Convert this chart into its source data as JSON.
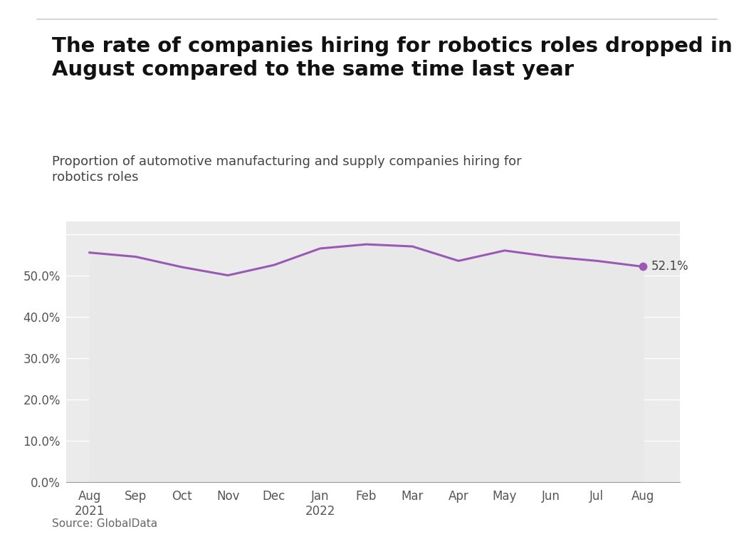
{
  "title_line1": "The rate of companies hiring for robotics roles dropped in",
  "title_line2": "August compared to the same time last year",
  "subtitle": "Proportion of automotive manufacturing and supply companies hiring for\nrobotics roles",
  "source": "Source: GlobalData",
  "line_color": "#9B59B6",
  "fill_color": "#E8E8E8",
  "background_color": "#EBEBEB",
  "last_label": "52.1%",
  "x_labels": [
    "Aug\n2021",
    "Sep",
    "Oct",
    "Nov",
    "Dec",
    "Jan\n2022",
    "Feb",
    "Mar",
    "Apr",
    "May",
    "Jun",
    "Jul",
    "Aug"
  ],
  "y_values": [
    55.5,
    54.5,
    52.0,
    50.0,
    52.5,
    56.5,
    57.5,
    57.0,
    53.5,
    56.0,
    54.5,
    53.5,
    52.1
  ],
  "y_ticks": [
    0,
    10,
    20,
    30,
    40,
    50,
    60
  ],
  "y_tick_labels": [
    "0.0%",
    "10.0%",
    "20.0%",
    "30.0%",
    "40.0%",
    "50.0%",
    ""
  ],
  "ylim": [
    0,
    63
  ],
  "title_fontsize": 21,
  "subtitle_fontsize": 13,
  "tick_fontsize": 12,
  "source_fontsize": 11,
  "top_bar_color": "#CCCCCC"
}
